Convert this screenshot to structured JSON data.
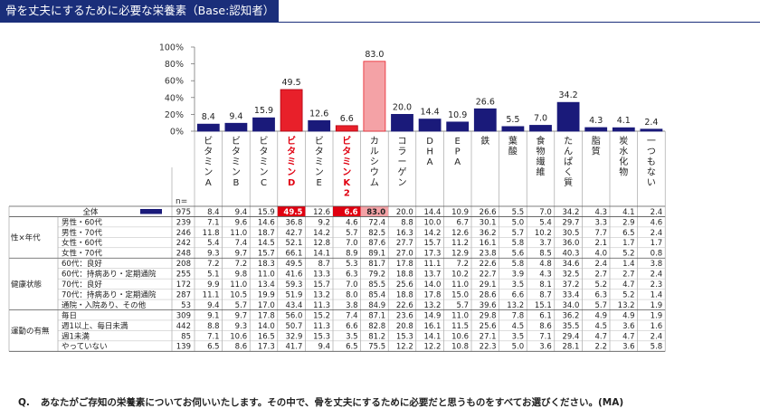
{
  "title": "骨を丈夫にするために必要な栄養素（Base:認知者）",
  "question": {
    "prefix": "Q.",
    "text": "あなたがご存知の栄養素についてお伺いいたします。その中で、骨を丈夫にするために必要だと思うものをすべてお選びください。(MA)"
  },
  "n_label": "n=",
  "colors": {
    "bar": "#1a1a7a",
    "highlight_red": "#e8202a",
    "highlight_pink": "#f4a2a6",
    "header_text_red": "#e00010",
    "highlight_fill_red": "#e00010"
  },
  "chart_data": {
    "type": "bar",
    "title": "骨を丈夫にするために必要な栄養素（Base:認知者）",
    "ylim": [
      0,
      100
    ],
    "y_ticks": [
      "0%",
      "20%",
      "40%",
      "60%",
      "80%",
      "100%"
    ],
    "categories": [
      "ビタミンA",
      "ビタミンB",
      "ビタミンC",
      "ビタミンD",
      "ビタミンE",
      "ビタミンK2",
      "カルシウム",
      "コラーゲン",
      "DHA",
      "EPA",
      "鉄",
      "葉酸",
      "食物繊維",
      "たんぱく質",
      "脂質",
      "炭水化物",
      "一つもない"
    ],
    "values": [
      8.4,
      9.4,
      15.9,
      49.5,
      12.6,
      6.6,
      83.0,
      20.0,
      14.4,
      10.9,
      26.6,
      5.5,
      7.0,
      34.2,
      4.3,
      4.1,
      2.4
    ],
    "bar_colors": [
      "navy",
      "navy",
      "navy",
      "red",
      "navy",
      "red",
      "pink",
      "navy",
      "navy",
      "navy",
      "navy",
      "navy",
      "navy",
      "navy",
      "navy",
      "navy",
      "navy"
    ],
    "header_labels": [
      "ビタミンA",
      "ビタミンB",
      "ビタミンC",
      "ビタミンD",
      "ビタミンE",
      "ビタミンK2",
      "カルシウム",
      "コラーゲン",
      "DHA",
      "EPA",
      "鉄",
      "葉酸",
      "食物繊維",
      "たんぱく質",
      "脂質",
      "炭水化物",
      "一つもない"
    ],
    "header_red": [
      false,
      false,
      false,
      true,
      false,
      true,
      false,
      false,
      false,
      false,
      false,
      false,
      false,
      false,
      false,
      false,
      false
    ]
  },
  "table": {
    "groups": [
      {
        "label": "",
        "rows": [
          {
            "label": "全体",
            "n": "975",
            "values": [
              "8.4",
              "9.4",
              "15.9",
              "49.5",
              "12.6",
              "6.6",
              "83.0",
              "20.0",
              "14.4",
              "10.9",
              "26.6",
              "5.5",
              "7.0",
              "34.2",
              "4.3",
              "4.1",
              "2.4"
            ],
            "legend": true
          }
        ]
      },
      {
        "label": "性×年代",
        "rows": [
          {
            "label": "男性・60代",
            "n": "239",
            "values": [
              "7.1",
              "9.6",
              "14.6",
              "36.8",
              "9.2",
              "4.6",
              "72.4",
              "8.8",
              "10.0",
              "6.7",
              "30.1",
              "5.0",
              "5.4",
              "29.7",
              "3.3",
              "2.9",
              "4.6"
            ]
          },
          {
            "label": "男性・70代",
            "n": "246",
            "values": [
              "11.8",
              "11.0",
              "18.7",
              "42.7",
              "14.2",
              "5.7",
              "82.5",
              "16.3",
              "14.2",
              "12.6",
              "36.2",
              "5.7",
              "10.2",
              "30.5",
              "7.7",
              "6.5",
              "2.4"
            ]
          },
          {
            "label": "女性・60代",
            "n": "242",
            "values": [
              "5.4",
              "7.4",
              "14.5",
              "52.1",
              "12.8",
              "7.0",
              "87.6",
              "27.7",
              "15.7",
              "11.2",
              "16.1",
              "5.8",
              "3.7",
              "36.0",
              "2.1",
              "1.7",
              "1.7"
            ]
          },
          {
            "label": "女性・70代",
            "n": "248",
            "values": [
              "9.3",
              "9.7",
              "15.7",
              "66.1",
              "14.1",
              "8.9",
              "89.1",
              "27.0",
              "17.3",
              "12.9",
              "23.8",
              "5.6",
              "8.5",
              "40.3",
              "4.0",
              "5.2",
              "0.8"
            ]
          }
        ]
      },
      {
        "label": "健康状態",
        "rows": [
          {
            "label": "60代：良好",
            "n": "208",
            "values": [
              "7.2",
              "7.2",
              "18.3",
              "49.5",
              "8.7",
              "5.3",
              "81.7",
              "17.8",
              "11.1",
              "7.2",
              "22.6",
              "5.8",
              "4.8",
              "34.6",
              "2.4",
              "1.4",
              "3.8"
            ]
          },
          {
            "label": "60代：持病あり・定期通院",
            "n": "255",
            "values": [
              "5.1",
              "9.8",
              "11.0",
              "41.6",
              "13.3",
              "6.3",
              "79.2",
              "18.8",
              "13.7",
              "10.2",
              "22.7",
              "3.9",
              "4.3",
              "32.5",
              "2.7",
              "2.7",
              "2.4"
            ]
          },
          {
            "label": "70代：良好",
            "n": "172",
            "values": [
              "9.9",
              "11.0",
              "13.4",
              "59.3",
              "15.7",
              "7.0",
              "85.5",
              "25.6",
              "14.0",
              "11.0",
              "29.1",
              "3.5",
              "8.1",
              "37.2",
              "5.2",
              "4.7",
              "2.3"
            ]
          },
          {
            "label": "70代：持病あり・定期通院",
            "n": "287",
            "values": [
              "11.1",
              "10.5",
              "19.9",
              "51.9",
              "13.2",
              "8.0",
              "85.4",
              "18.8",
              "17.8",
              "15.0",
              "28.6",
              "6.6",
              "8.7",
              "33.4",
              "6.3",
              "5.2",
              "1.4"
            ]
          },
          {
            "label": "通院・入院あり、その他",
            "n": "53",
            "values": [
              "9.4",
              "5.7",
              "17.0",
              "43.4",
              "11.3",
              "3.8",
              "84.9",
              "22.6",
              "13.2",
              "5.7",
              "39.6",
              "13.2",
              "15.1",
              "34.0",
              "5.7",
              "13.2",
              "1.9"
            ]
          }
        ]
      },
      {
        "label": "運動の有無",
        "rows": [
          {
            "label": "毎日",
            "n": "309",
            "values": [
              "9.1",
              "9.7",
              "17.8",
              "56.0",
              "15.2",
              "7.4",
              "87.1",
              "23.6",
              "14.9",
              "11.0",
              "29.8",
              "7.8",
              "6.1",
              "36.2",
              "4.9",
              "4.9",
              "1.9"
            ]
          },
          {
            "label": "週1以上、毎日未満",
            "n": "442",
            "values": [
              "8.8",
              "9.3",
              "14.0",
              "50.7",
              "11.3",
              "6.6",
              "82.8",
              "20.8",
              "16.1",
              "11.5",
              "25.6",
              "4.5",
              "8.6",
              "35.5",
              "4.5",
              "3.6",
              "1.6"
            ]
          },
          {
            "label": "週1未満",
            "n": "85",
            "values": [
              "7.1",
              "10.6",
              "16.5",
              "32.9",
              "15.3",
              "3.5",
              "81.2",
              "15.3",
              "14.1",
              "10.6",
              "27.1",
              "3.5",
              "7.1",
              "29.4",
              "4.7",
              "4.7",
              "2.4"
            ]
          },
          {
            "label": "やっていない",
            "n": "139",
            "values": [
              "6.5",
              "8.6",
              "17.3",
              "41.7",
              "9.4",
              "6.5",
              "75.5",
              "12.2",
              "12.2",
              "10.8",
              "22.3",
              "5.0",
              "3.6",
              "28.1",
              "2.2",
              "3.6",
              "5.8"
            ]
          }
        ]
      }
    ]
  }
}
